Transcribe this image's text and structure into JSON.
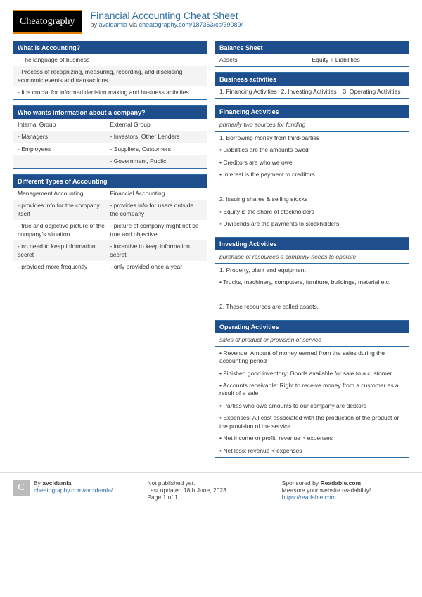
{
  "header": {
    "logo": "Cheatography",
    "title": "Financial Accounting Cheat Sheet",
    "by": "by ",
    "author": "avcidamla",
    "via": " via ",
    "url": "cheatography.com/187363/cs/39089/"
  },
  "left": {
    "s1": {
      "title": "What is Accounting?",
      "r1": "- The language of business",
      "r2": "- Process of recognizing, measuring, recording, and disclosing economic events and transactions",
      "r3": "- It is crucial for informed decision making and business activities"
    },
    "s2": {
      "title": "Who wants information about a company?",
      "h1": "Internal Group",
      "h2": "External Group",
      "a1": "- Managers",
      "a2": "- Investors, Other Lenders",
      "b1": "- Employees",
      "b2": "- Suppliers, Customers",
      "c1": "",
      "c2": "- Government, Public"
    },
    "s3": {
      "title": "Different Types of Accounting",
      "h1": "Management Accounting",
      "h2": "Financial Accounting",
      "a1": "- provides info for the company itself",
      "a2": "- provides info for users outside the company",
      "b1": "- true and objective picture of the company's situation",
      "b2": "- picture of company might not be true and objective",
      "c1": "- no need to keep information secret",
      "c2": "- incentive to keep information secret",
      "d1": "- provided more frequently",
      "d2": "- only provided once a year"
    }
  },
  "right": {
    "s1": {
      "title": "Balance Sheet",
      "c1": "Assets",
      "c2": "Equity + Liabilities"
    },
    "s2": {
      "title": "Business activities",
      "c1": "1. Financing Activities",
      "c2": "2. Investing Activities",
      "c3": "3. Operating Activities"
    },
    "s3": {
      "title": "Financing Activities",
      "sub": "primarily two sources for funding",
      "r1": "1. Borrowing money from third-parties",
      "r2": "• Liabilities are the amounts owed",
      "r3": "• Creditors are who we owe",
      "r4": "• Interest is the payment to creditors",
      "r5": "2. Issuing shares & selling stocks",
      "r6": "• Equity is the share of stockholders",
      "r7": "• Dividends are the payments to stockholders"
    },
    "s4": {
      "title": "Investing Activities",
      "sub": "purchase of resources a company needs to operate",
      "r1": "1. Property, plant and equipment",
      "r2": "• Trucks, machinery, computers, furniture, buildings, material etc.",
      "r3": "2. These resources are called assets."
    },
    "s5": {
      "title": "Operating Activities",
      "sub": "sales of product or provision of service",
      "r1": "• Revenue: Amount of money earned from the sales during the accounting period",
      "r2": "• Finished good inventory: Goods available for sale to a customer",
      "r3": "• Accounts receivable: Right to receive money from a customer as a result of a sale",
      "r4": "• Parties who owe amounts to our company are debtors",
      "r5": "• Expenses: All cost associated with the production of the product or the provision of the service",
      "r6": "• Net income or profit: revenue > expenses",
      "r7": "• Net loss: revenue < expenses"
    }
  },
  "footer": {
    "by_label": "By ",
    "author": "avcidamla",
    "author_url": "cheatography.com/avcidamla/",
    "pub1": "Not published yet.",
    "pub2": "Last updated 18th June, 2023.",
    "pub3": "Page 1 of 1.",
    "spon1": "Sponsored by ",
    "spon_name": "Readable.com",
    "spon2": "Measure your website readability!",
    "spon_url": "https://readable.com"
  }
}
